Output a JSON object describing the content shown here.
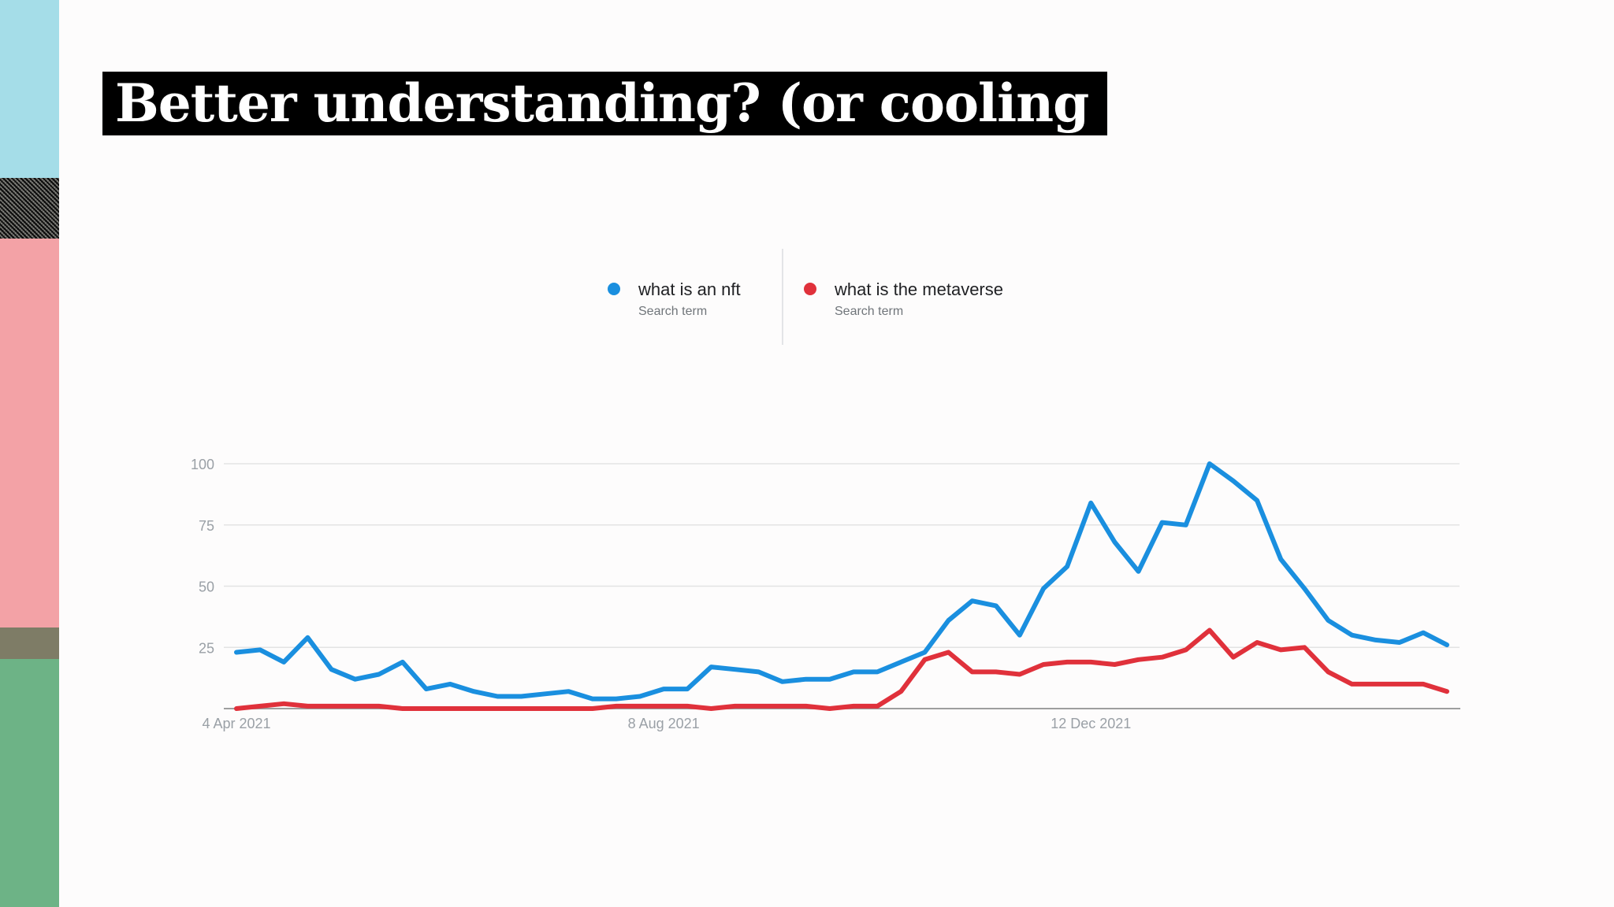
{
  "slide": {
    "title": "Better understanding? (or cooling off?!)"
  },
  "colors": {
    "series_nft": "#1a8fdf",
    "series_metaverse": "#e0313b",
    "title_bg": "#000000",
    "title_text": "#ffffff",
    "grid": "#e3e3e3",
    "axis": "#9e9e9e"
  },
  "chart_data": {
    "type": "line",
    "title": "",
    "xlabel": "",
    "ylabel": "",
    "ylim": [
      0,
      100
    ],
    "yticks": [
      25,
      50,
      75,
      100
    ],
    "grid": true,
    "legend_position": "top-center",
    "x_tick_labels": [
      {
        "label": "4 Apr 2021",
        "index": 0
      },
      {
        "label": "8 Aug 2021",
        "index": 18
      },
      {
        "label": "12 Dec 2021",
        "index": 36
      }
    ],
    "x_start": "4 Apr 2021",
    "x_step": "1 week",
    "series": [
      {
        "name": "what is an nft",
        "subtitle": "Search term",
        "color": "#1a8fdf",
        "values": [
          23,
          24,
          19,
          29,
          16,
          12,
          14,
          19,
          8,
          10,
          7,
          5,
          5,
          6,
          7,
          4,
          4,
          5,
          8,
          8,
          17,
          16,
          15,
          11,
          12,
          12,
          15,
          15,
          19,
          23,
          36,
          44,
          42,
          30,
          49,
          58,
          84,
          68,
          56,
          76,
          75,
          100,
          93,
          85,
          61,
          49,
          36,
          30,
          28,
          27,
          31,
          26
        ]
      },
      {
        "name": "what is the metaverse",
        "subtitle": "Search term",
        "color": "#e0313b",
        "values": [
          0,
          1,
          2,
          1,
          1,
          1,
          1,
          0,
          0,
          0,
          0,
          0,
          0,
          0,
          0,
          0,
          1,
          1,
          1,
          1,
          0,
          1,
          1,
          1,
          1,
          0,
          1,
          1,
          7,
          20,
          23,
          15,
          15,
          14,
          18,
          19,
          19,
          18,
          20,
          21,
          24,
          32,
          21,
          27,
          24,
          25,
          15,
          10,
          10,
          10,
          10,
          7
        ]
      }
    ]
  }
}
